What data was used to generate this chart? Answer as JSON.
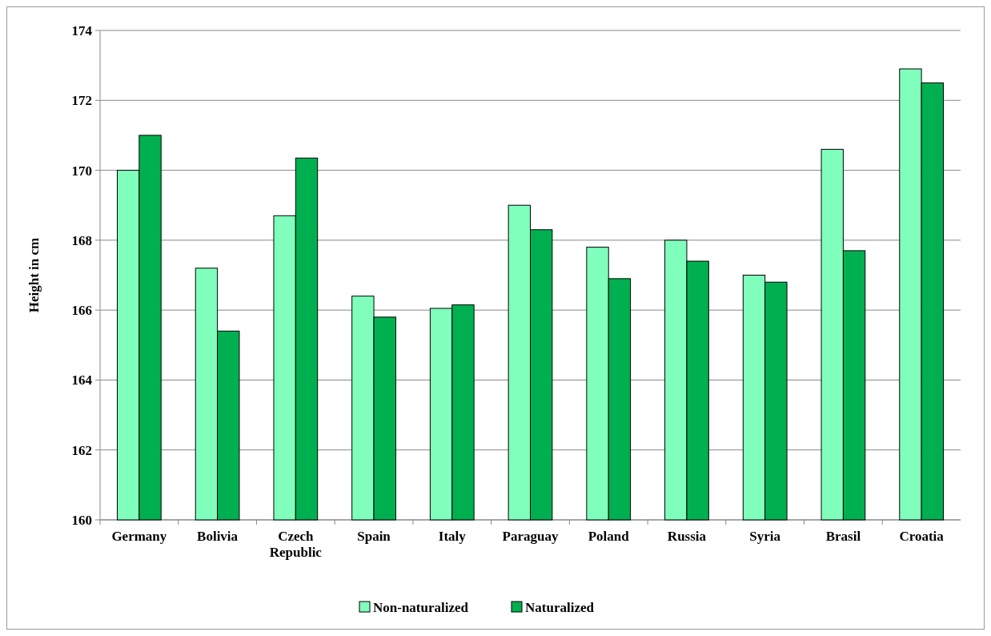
{
  "chart_data": {
    "type": "bar",
    "ylabel": "Height in cm",
    "categories": [
      "Germany",
      "Bolivia",
      "Czech Republic",
      "Spain",
      "Italy",
      "Paraguay",
      "Poland",
      "Russia",
      "Syria",
      "Brasil",
      "Croatia"
    ],
    "series": [
      {
        "name": "Non-naturalized",
        "color": "#80ffbc",
        "values": [
          170.0,
          167.2,
          168.7,
          166.4,
          166.05,
          169.0,
          167.8,
          168.0,
          167.0,
          170.6,
          172.9
        ]
      },
      {
        "name": "Naturalized",
        "color": "#00b050",
        "values": [
          171.0,
          165.4,
          170.35,
          165.8,
          166.15,
          168.3,
          166.9,
          167.4,
          166.8,
          167.7,
          172.5
        ]
      }
    ],
    "ylim": [
      160,
      174
    ],
    "yticks": [
      160,
      162,
      164,
      166,
      168,
      170,
      172,
      174
    ],
    "grid": "y",
    "legend": "bottom"
  }
}
